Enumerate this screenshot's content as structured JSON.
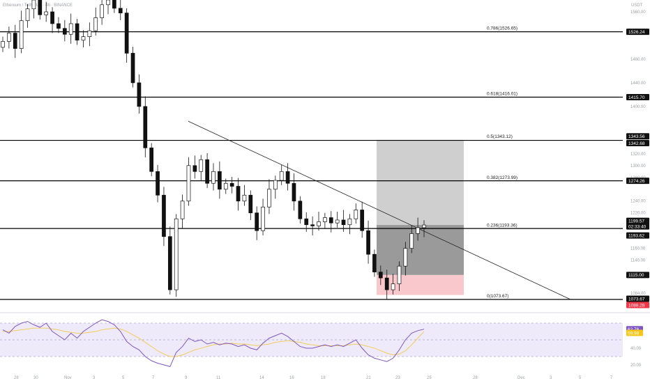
{
  "chart_data": [
    {
      "type": "candlestick",
      "title": "Ethereum / TetherUS · 4h · BINANCE",
      "currency": "USDT",
      "ylim": [
        1056,
        1580
      ],
      "y_ticks": [
        1084.0,
        1112.0,
        1140.0,
        1160.0,
        1200.0,
        1220.0,
        1240.0,
        1280.0,
        1300.0,
        1320.0,
        1400.0,
        1440.0,
        1480.0,
        1560.0
      ],
      "x_ticks": [
        "28",
        "30",
        "Nov",
        "3",
        "5",
        "7",
        "9",
        "11",
        "14",
        "16",
        "18",
        "21",
        "23",
        "25",
        "28",
        "Dec",
        "3",
        "5",
        "7"
      ],
      "candles_close": [
        1510,
        1524,
        1498,
        1545,
        1565,
        1580,
        1555,
        1560,
        1540,
        1532,
        1522,
        1540,
        1512,
        1518,
        1528,
        1550,
        1572,
        1580,
        1566,
        1558,
        1490,
        1440,
        1400,
        1330,
        1290,
        1250,
        1180,
        1090,
        1210,
        1240,
        1300,
        1290,
        1310,
        1270,
        1290,
        1260,
        1270,
        1265,
        1240,
        1250,
        1220,
        1190,
        1230,
        1260,
        1275,
        1290,
        1270,
        1240,
        1210,
        1200,
        1198,
        1205,
        1212,
        1203,
        1208,
        1200,
        1210,
        1225,
        1190,
        1150,
        1120,
        1110,
        1090,
        1100,
        1130,
        1160,
        1185,
        1195,
        1199.57
      ],
      "horizontal_levels": [
        1526.24,
        1415.7,
        1342.68,
        1274.26,
        1193.62,
        1073.67
      ],
      "fib_levels": [
        {
          "ratio": "0.786",
          "value": "1526.65"
        },
        {
          "ratio": "0.618",
          "value": "1416.01"
        },
        {
          "ratio": "0.5",
          "value": "1343.12"
        },
        {
          "ratio": "0.382",
          "value": "1273.99"
        },
        {
          "ratio": "0.236",
          "value": "1193.36"
        },
        {
          "ratio": "0",
          "value": "1073.67"
        }
      ],
      "trendline": {
        "from": [
          1375,
          "Nov 10"
        ],
        "to": [
          1073.67,
          "Nov 30"
        ]
      },
      "position": {
        "entry": 1199.57,
        "target": 1343.56,
        "stop": 1088.28,
        "mid_level": 1115.0
      },
      "price_labels": [
        {
          "text": "1526.24",
          "bg": "#111111"
        },
        {
          "text": "1415.70",
          "bg": "#111111"
        },
        {
          "text": "1343.56",
          "bg": "#111111"
        },
        {
          "text": "1342.68",
          "bg": "#111111"
        },
        {
          "text": "1274.26",
          "bg": "#111111"
        },
        {
          "text": "1199.57",
          "bg": "#111111"
        },
        {
          "text": "02:33:40",
          "bg": "#111111"
        },
        {
          "text": "1193.62",
          "bg": "#111111"
        },
        {
          "text": "1115.00",
          "bg": "#111111"
        },
        {
          "text": "1073.67",
          "bg": "#111111"
        },
        {
          "text": "1088.28",
          "bg": "#f23645"
        }
      ]
    },
    {
      "type": "line",
      "indicator": "RSI",
      "ylim": [
        15,
        75
      ],
      "band": [
        30,
        70
      ],
      "y_ticks": [
        "40.00",
        "20.00"
      ],
      "rsi_values": [
        62,
        58,
        66,
        70,
        72,
        68,
        65,
        70,
        60,
        55,
        50,
        58,
        52,
        60,
        65,
        70,
        74,
        72,
        68,
        60,
        48,
        42,
        38,
        30,
        25,
        22,
        20,
        18,
        35,
        42,
        52,
        48,
        50,
        45,
        47,
        44,
        46,
        45,
        42,
        44,
        40,
        38,
        46,
        52,
        55,
        58,
        54,
        48,
        42,
        40,
        40,
        42,
        44,
        42,
        44,
        42,
        46,
        50,
        40,
        32,
        28,
        26,
        24,
        28,
        38,
        50,
        58,
        61,
        62.76
      ],
      "ma_values": [
        60,
        60,
        61,
        62,
        63,
        64,
        64,
        64,
        63,
        62,
        60,
        59,
        58,
        58,
        59,
        60,
        62,
        63,
        64,
        63,
        60,
        56,
        52,
        47,
        42,
        37,
        33,
        30,
        30,
        32,
        35,
        38,
        40,
        42,
        44,
        45,
        45,
        46,
        45,
        45,
        44,
        43,
        44,
        45,
        47,
        48,
        49,
        48,
        47,
        45,
        44,
        43,
        43,
        43,
        43,
        43,
        44,
        45,
        44,
        42,
        40,
        37,
        34,
        32,
        33,
        37,
        44,
        52,
        59.98
      ],
      "labels": [
        {
          "text": "62.76",
          "bg": "#7e57c2"
        },
        {
          "text": "59.98",
          "bg": "#f5c518"
        }
      ]
    }
  ]
}
